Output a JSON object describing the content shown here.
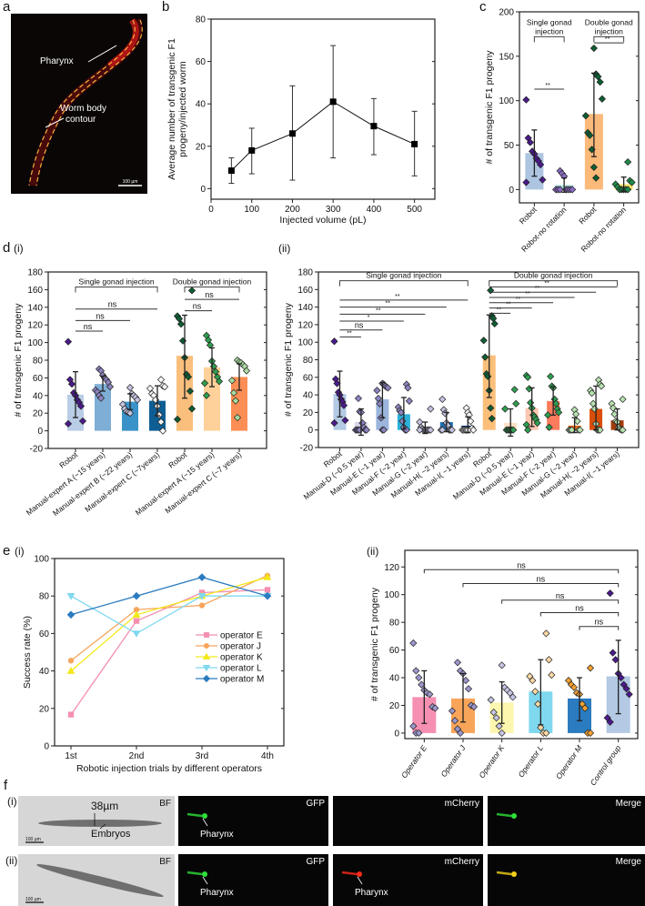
{
  "labels": {
    "a": "a",
    "b": "b",
    "c": "c",
    "d": "d",
    "d_i": "(i)",
    "d_ii": "(ii)",
    "e": "e",
    "e_i": "(i)",
    "e_ii": "(ii)",
    "f": "f",
    "f_i": "(i)",
    "f_ii": "(ii)"
  },
  "panel_a": {
    "pharynx": "Pharynx",
    "contour_line1": "Worm body",
    "contour_line2": "contour",
    "scale": "100 µm"
  },
  "panel_f": {
    "channels": [
      "BF",
      "GFP",
      "mCherry",
      "Merge"
    ],
    "pharynx": "Pharynx",
    "width_label": "38µm",
    "embryos": "Embryos",
    "scale": "100 µm"
  },
  "chart_data": [
    {
      "id": "b",
      "type": "line",
      "x": [
        50,
        100,
        200,
        300,
        400,
        500
      ],
      "y": [
        8.5,
        18,
        26,
        41,
        29.5,
        21
      ],
      "yerr": [
        [
          2.5,
          14.5
        ],
        [
          7,
          28.5
        ],
        [
          4,
          48.5
        ],
        [
          14.5,
          67.5
        ],
        [
          16,
          42.5
        ],
        [
          6,
          36.5
        ]
      ],
      "xlabel": "Injected volume (pL)",
      "ylabel_lines": [
        "Average number of transgenic F1",
        "progeny/injected worm"
      ],
      "xlim": [
        0,
        550
      ],
      "ylim": [
        -5,
        80
      ],
      "xticks": [
        "0",
        "100",
        "200",
        "300",
        "400",
        "500"
      ],
      "yticks": [
        "0",
        "20",
        "40",
        "60",
        "80"
      ]
    },
    {
      "id": "c",
      "type": "bar",
      "categories": [
        "Robot",
        "Robot-no rotation",
        "Robot",
        "Robot-no rotation"
      ],
      "values": [
        41,
        5,
        85,
        6
      ],
      "err": [
        [
          15,
          67
        ],
        [
          -3,
          13
        ],
        [
          37,
          131
        ],
        [
          -2,
          14
        ]
      ],
      "colors": [
        "#aec5e1",
        "#a9e3de",
        "#fbb97a",
        "#fde36b"
      ],
      "point_colors": [
        "#4b1a8c",
        "#8a6cc4",
        "#0d5c33",
        "#1f8a48"
      ],
      "points": [
        [
          101,
          58,
          53,
          43,
          40,
          35,
          32,
          28,
          11,
          8
        ],
        [
          21,
          18,
          15,
          0,
          0,
          0,
          0,
          0,
          0,
          0
        ],
        [
          159,
          130,
          127,
          121,
          102,
          83,
          64,
          61,
          45,
          25,
          13
        ],
        [
          31,
          10,
          8,
          6,
          3,
          0,
          0,
          0,
          0,
          0
        ]
      ],
      "ylabel": "# of transgenic F1 progeny",
      "ylim": [
        -15,
        200
      ],
      "yticks": [
        "0",
        "50",
        "100",
        "150",
        "200"
      ],
      "groups": [
        {
          "label_lines": [
            "Single gonad",
            "injection"
          ],
          "from": 0,
          "to": 1,
          "y": 172
        },
        {
          "label_lines": [
            "Double gonad",
            "injection"
          ],
          "from": 2,
          "to": 3,
          "y": 172
        }
      ],
      "significance": [
        {
          "from": 0,
          "to": 1,
          "y": 113,
          "label": "**"
        },
        {
          "from": 2,
          "to": 3,
          "y": 165,
          "label": "**"
        }
      ]
    },
    {
      "id": "d_i",
      "type": "bar",
      "categories": [
        "Robot",
        "Manual-expert A (~15 years)",
        "Manual-expert B (~22 years)",
        "Manual-expert C (~7years)",
        "Robot",
        "Manual-expert A (~15 years)",
        "Manual-expert C (~7 years)"
      ],
      "values": [
        41,
        53,
        33,
        34,
        85,
        72,
        61
      ],
      "err": [
        [
          15,
          67
        ],
        [
          45,
          62
        ],
        [
          24,
          42
        ],
        [
          17,
          51
        ],
        [
          37,
          131
        ],
        [
          50,
          94
        ],
        [
          46,
          76
        ]
      ],
      "colors": [
        "#b9cde6",
        "#7eaed6",
        "#3a93c8",
        "#0f5e93",
        "#fbbf7d",
        "#fdd199",
        "#fb8e55"
      ],
      "point_colors": [
        "#4b1a8c",
        "#8c84c0",
        "#c4c3e0",
        "#f7f7f7",
        "#0d5c33",
        "#2e9e4f",
        "#a8dca0"
      ],
      "points": [
        [
          101,
          58,
          53,
          43,
          40,
          35,
          32,
          28,
          11,
          8
        ],
        [
          70,
          68,
          63,
          60,
          58,
          55,
          50,
          46,
          44,
          40,
          37
        ],
        [
          49,
          42,
          40,
          38,
          35,
          30,
          25,
          22,
          21,
          20
        ],
        [
          58,
          51,
          50,
          48,
          42,
          40,
          35,
          28,
          18,
          10,
          0
        ],
        [
          159,
          130,
          127,
          121,
          102,
          83,
          64,
          61,
          45,
          25,
          13
        ],
        [
          108,
          103,
          97,
          79,
          73,
          67,
          61,
          56,
          54,
          40
        ],
        [
          80,
          78,
          77,
          75,
          73,
          68,
          57,
          43,
          34,
          15
        ]
      ],
      "ylabel": "# of transgenic F1 progeny",
      "ylim": [
        -20,
        180
      ],
      "yticks": [
        "-20",
        "0",
        "20",
        "40",
        "60",
        "80",
        "100",
        "120",
        "140",
        "160",
        "180"
      ],
      "groups": [
        {
          "label_lines": [
            "Single gonad injection"
          ],
          "from": 0,
          "to": 3,
          "y": 163
        },
        {
          "label_lines": [
            "Double gonad injection"
          ],
          "from": 4,
          "to": 6,
          "y": 163
        }
      ],
      "significance": [
        {
          "from": 0,
          "to": 1,
          "y": 113,
          "label": "ns"
        },
        {
          "from": 0,
          "to": 2,
          "y": 125,
          "label": "ns"
        },
        {
          "from": 0,
          "to": 3,
          "y": 138,
          "label": "ns"
        },
        {
          "from": 4,
          "to": 5,
          "y": 136,
          "label": "ns"
        },
        {
          "from": 4,
          "to": 6,
          "y": 149,
          "label": "ns"
        }
      ]
    },
    {
      "id": "d_ii",
      "type": "bar",
      "categories": [
        "Robot",
        "Manual-D (~0.5 year)",
        "Manual-E (~1 year)",
        "Manual-F (~2 year)",
        "Manual-G (~2 year)",
        "Manual-H( ~2 years)",
        "Manual-I( ~1 years)",
        "Robot",
        "Manual-D (~0.5 year)",
        "Manual-E (~1 year)",
        "Manual-F (~2 year)",
        "Manual-G (~2 year)",
        "Manual-H( ~2 years)",
        "Manual-I( ~1 years)"
      ],
      "values": [
        41,
        9,
        35,
        18,
        2,
        9,
        5,
        85,
        8,
        25,
        33,
        5,
        24,
        11
      ],
      "err": [
        [
          15,
          67
        ],
        [
          -6,
          24
        ],
        [
          14,
          54
        ],
        [
          1,
          37
        ],
        [
          -4,
          9
        ],
        [
          -2,
          20
        ],
        [
          -3,
          15
        ],
        [
          37,
          131
        ],
        [
          -7,
          24
        ],
        [
          4,
          48
        ],
        [
          17,
          49
        ],
        [
          -3,
          14
        ],
        [
          0,
          50
        ],
        [
          0,
          24
        ]
      ],
      "colors": [
        "#b3c9e4",
        "#d7d4ea",
        "#9bb5dc",
        "#2bb0d8",
        "#3c8fc2",
        "#1f6fb3",
        "#123a78",
        "#fbbf7a",
        "#fde0c5",
        "#fcc7b0",
        "#fb7c5c",
        "#f26f12",
        "#d94e0a",
        "#a53b0b"
      ],
      "point_colors": [
        "#4b1a8c",
        "#8c84c0",
        "#8c84c0",
        "#8c84c0",
        "#c4c3e0",
        "#c4c3e0",
        "#f5f5f5",
        "#0d5c33",
        "#2e9e4f",
        "#2e9e4f",
        "#2e9e4f",
        "#b8e2b0",
        "#b8e2b0",
        "#b8e2b0"
      ],
      "points": [
        [
          101,
          58,
          53,
          43,
          40,
          35,
          32,
          28,
          11,
          8
        ],
        [
          36,
          21,
          20,
          8,
          3,
          0,
          0,
          0,
          0,
          0,
          0
        ],
        [
          53,
          52,
          50,
          49,
          48,
          45,
          36,
          30,
          14,
          0,
          0
        ],
        [
          52,
          48,
          33,
          26,
          22,
          20,
          10,
          3,
          0,
          0
        ],
        [
          24,
          9,
          3,
          1,
          0,
          0,
          0,
          0,
          0,
          0,
          0
        ],
        [
          35,
          23,
          19,
          8,
          5,
          0,
          0,
          0,
          0,
          0
        ],
        [
          25,
          20,
          17,
          10,
          2,
          0,
          0,
          0,
          0,
          0,
          0
        ],
        [
          159,
          130,
          127,
          121,
          102,
          83,
          64,
          61,
          45,
          25,
          13
        ],
        [
          46,
          30,
          24,
          0,
          0,
          0,
          0,
          0,
          0
        ],
        [
          62,
          60,
          47,
          31,
          25,
          17,
          15,
          12,
          8,
          6,
          0
        ],
        [
          61,
          50,
          48,
          35,
          30,
          24,
          20,
          17,
          3
        ],
        [
          23,
          18,
          10,
          0,
          0,
          0,
          0,
          0
        ],
        [
          57,
          52,
          50,
          45,
          42,
          30,
          24,
          7,
          0,
          0,
          0
        ],
        [
          35,
          30,
          25,
          18,
          10,
          9,
          3,
          1,
          0,
          0
        ]
      ],
      "ylabel": "# of transgenic F1 progeny",
      "ylim": [
        -20,
        180
      ],
      "yticks": [
        "-20",
        "0",
        "20",
        "40",
        "60",
        "80",
        "100",
        "120",
        "140",
        "160",
        "180"
      ],
      "groups": [
        {
          "label_lines": [
            "Single gonad injection"
          ],
          "from": 0,
          "to": 6,
          "y": 170
        },
        {
          "label_lines": [
            "Double gonad injection"
          ],
          "from": 7,
          "to": 13,
          "y": 170
        }
      ],
      "significance": [
        {
          "from": 0,
          "to": 1,
          "y": 106,
          "label": "**"
        },
        {
          "from": 0,
          "to": 2,
          "y": 114,
          "label": "ns"
        },
        {
          "from": 0,
          "to": 3,
          "y": 124,
          "label": "*"
        },
        {
          "from": 0,
          "to": 4,
          "y": 132,
          "label": "**"
        },
        {
          "from": 0,
          "to": 5,
          "y": 140,
          "label": "**"
        },
        {
          "from": 0,
          "to": 6,
          "y": 148,
          "label": "**"
        },
        {
          "from": 7,
          "to": 8,
          "y": 133,
          "label": "**"
        },
        {
          "from": 7,
          "to": 9,
          "y": 139,
          "label": "**"
        },
        {
          "from": 7,
          "to": 10,
          "y": 145,
          "label": "**"
        },
        {
          "from": 7,
          "to": 11,
          "y": 151,
          "label": "**"
        },
        {
          "from": 7,
          "to": 12,
          "y": 157,
          "label": "**"
        },
        {
          "from": 7,
          "to": 13,
          "y": 163,
          "label": "**"
        }
      ]
    },
    {
      "id": "e_i",
      "type": "line",
      "categories": [
        "1st",
        "2nd",
        "3rd",
        "4th"
      ],
      "series": [
        {
          "name": "operator E",
          "values": [
            16.7,
            66.7,
            81.8,
            83.3
          ],
          "color": "#f48fb1",
          "marker": "square"
        },
        {
          "name": "operator J",
          "values": [
            45.5,
            72.7,
            75,
            90.9
          ],
          "color": "#f8a55a",
          "marker": "circle"
        },
        {
          "name": "operator K",
          "values": [
            40,
            70,
            80,
            90
          ],
          "color": "#f2e91a",
          "marker": "triangle-up"
        },
        {
          "name": "operator L",
          "values": [
            80,
            60,
            80,
            80
          ],
          "color": "#7fd8ef",
          "marker": "triangle-down"
        },
        {
          "name": "operator M",
          "values": [
            70,
            80,
            90,
            80
          ],
          "color": "#2a7bbf",
          "marker": "diamond"
        }
      ],
      "xlabel": "Robotic injection trials by different operators",
      "ylabel": "Success rate (%)",
      "ylim": [
        0,
        100
      ],
      "yticks": [
        "0",
        "20",
        "40",
        "60",
        "80",
        "100"
      ],
      "legend": "center-right"
    },
    {
      "id": "e_ii",
      "type": "bar",
      "categories": [
        "Operator E",
        "Operator J",
        "Operator K",
        "Operator L",
        "Operator M",
        "Control group"
      ],
      "values": [
        26,
        25,
        22,
        30,
        25,
        41
      ],
      "err": [
        [
          7,
          45
        ],
        [
          8,
          43
        ],
        [
          7,
          37
        ],
        [
          6,
          53
        ],
        [
          9,
          40
        ],
        [
          14,
          67
        ]
      ],
      "colors": [
        "#f690b2",
        "#f8a55a",
        "#fdf6ae",
        "#7fd8ef",
        "#2a7bbf",
        "#b3c9e4"
      ],
      "point_colors": [
        "#9b97cc",
        "#9b97cc",
        "#c7c6e4",
        "#fcd9a6",
        "#f5a033",
        "#4b1a8c"
      ],
      "points": [
        [
          65,
          45,
          40,
          35,
          31,
          29,
          28,
          19,
          18,
          5,
          0,
          0
        ],
        [
          51,
          45,
          43,
          38,
          32,
          20,
          19,
          16,
          9,
          3,
          0
        ],
        [
          49,
          33,
          31,
          29,
          26,
          24,
          15,
          11,
          5,
          0
        ],
        [
          72,
          53,
          42,
          41,
          38,
          30,
          21,
          4,
          0,
          0
        ],
        [
          47,
          38,
          35,
          33,
          29,
          28,
          21,
          18,
          0,
          0
        ],
        [
          101,
          58,
          53,
          43,
          40,
          35,
          32,
          28,
          11,
          8
        ]
      ],
      "ylabel": "# of transgenic F1 progeny",
      "ylim": [
        -4,
        132
      ],
      "yticks": [
        "0",
        "20",
        "40",
        "60",
        "80",
        "100",
        "120"
      ],
      "significance": [
        {
          "from": 0,
          "to": 5,
          "y": 118,
          "label": "ns"
        },
        {
          "from": 1,
          "to": 5,
          "y": 108,
          "label": "ns"
        },
        {
          "from": 2,
          "to": 5,
          "y": 96,
          "label": "ns"
        },
        {
          "from": 3,
          "to": 5,
          "y": 87,
          "label": "ns"
        },
        {
          "from": 4,
          "to": 5,
          "y": 77,
          "label": "ns"
        }
      ]
    }
  ]
}
